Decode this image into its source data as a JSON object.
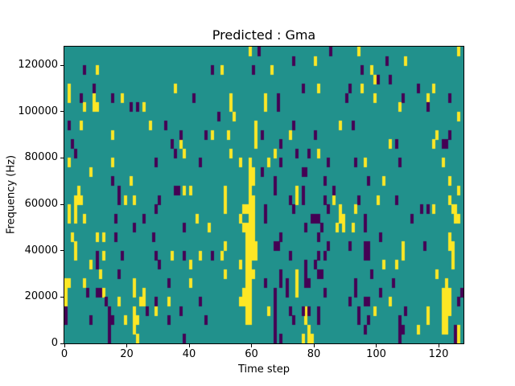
{
  "chart_data": {
    "type": "heatmap",
    "title": "Predicted : Gma",
    "xlabel": "Time step",
    "ylabel": "Frequency (Hz)",
    "x_range": [
      0,
      128
    ],
    "y_range": [
      0,
      128000
    ],
    "x_ticks": [
      0,
      20,
      40,
      60,
      80,
      100,
      120
    ],
    "y_ticks": [
      0,
      20000,
      40000,
      60000,
      80000,
      100000,
      120000
    ],
    "grid_cols": 128,
    "grid_rows": 32,
    "cell_height_hz": 4000,
    "grid": "off",
    "legend": "none",
    "colors": {
      "mid": "#21918c",
      "high": "#fde725",
      "low": "#440154",
      "frame": "#000000",
      "text": "#000000",
      "figure_bg": "#ffffff"
    },
    "cells": {
      "high": [
        [
          59,
          31
        ],
        [
          94,
          31
        ],
        [
          126,
          31
        ],
        [
          80,
          30
        ],
        [
          109,
          30
        ],
        [
          10,
          29
        ],
        [
          50,
          29
        ],
        [
          66,
          29
        ],
        [
          98,
          29
        ],
        [
          99,
          28
        ],
        [
          1,
          27
        ],
        [
          35,
          27
        ],
        [
          81,
          27
        ],
        [
          95,
          27
        ],
        [
          118,
          27
        ],
        [
          1,
          26
        ],
        [
          9,
          26
        ],
        [
          18,
          26
        ],
        [
          53,
          26
        ],
        [
          64,
          26
        ],
        [
          99,
          26
        ],
        [
          116,
          26
        ],
        [
          6,
          25
        ],
        [
          9,
          25
        ],
        [
          10,
          25
        ],
        [
          25,
          25
        ],
        [
          53,
          25
        ],
        [
          64,
          25
        ],
        [
          107,
          25
        ],
        [
          54,
          24
        ],
        [
          126,
          24
        ],
        [
          5,
          23
        ],
        [
          27,
          23
        ],
        [
          61,
          23
        ],
        [
          88,
          23
        ],
        [
          15,
          22
        ],
        [
          47,
          22
        ],
        [
          52,
          22
        ],
        [
          61,
          22
        ],
        [
          72,
          22
        ],
        [
          119,
          22
        ],
        [
          37,
          21
        ],
        [
          61,
          21
        ],
        [
          104,
          21
        ],
        [
          118,
          21
        ],
        [
          38,
          20
        ],
        [
          53,
          20
        ],
        [
          67,
          20
        ],
        [
          81,
          20
        ],
        [
          1,
          19
        ],
        [
          15,
          19
        ],
        [
          56,
          19
        ],
        [
          59,
          19
        ],
        [
          65,
          19
        ],
        [
          96,
          19
        ],
        [
          121,
          19
        ],
        [
          8,
          18
        ],
        [
          59,
          18
        ],
        [
          60,
          18
        ],
        [
          21,
          17
        ],
        [
          59,
          17
        ],
        [
          60,
          17
        ],
        [
          102,
          17
        ],
        [
          123,
          17
        ],
        [
          4,
          16
        ],
        [
          38,
          16
        ],
        [
          40,
          16
        ],
        [
          51,
          16
        ],
        [
          59,
          16
        ],
        [
          74,
          16
        ],
        [
          126,
          16
        ],
        [
          3,
          15
        ],
        [
          4,
          15
        ],
        [
          5,
          15
        ],
        [
          19,
          15
        ],
        [
          22,
          15
        ],
        [
          51,
          15
        ],
        [
          59,
          15
        ],
        [
          60,
          15
        ],
        [
          74,
          15
        ],
        [
          86,
          15
        ],
        [
          100,
          15
        ],
        [
          123,
          15
        ],
        [
          1,
          14
        ],
        [
          3,
          14
        ],
        [
          51,
          14
        ],
        [
          57,
          14
        ],
        [
          58,
          14
        ],
        [
          59,
          14
        ],
        [
          60,
          14
        ],
        [
          88,
          14
        ],
        [
          93,
          14
        ],
        [
          118,
          14
        ],
        [
          124,
          14
        ],
        [
          125,
          14
        ],
        [
          1,
          13
        ],
        [
          3,
          13
        ],
        [
          6,
          13
        ],
        [
          42,
          13
        ],
        [
          56,
          13
        ],
        [
          59,
          13
        ],
        [
          60,
          13
        ],
        [
          88,
          13
        ],
        [
          89,
          13
        ],
        [
          125,
          13
        ],
        [
          126,
          13
        ],
        [
          46,
          12
        ],
        [
          57,
          12
        ],
        [
          58,
          12
        ],
        [
          59,
          12
        ],
        [
          60,
          12
        ],
        [
          87,
          12
        ],
        [
          89,
          12
        ],
        [
          92,
          12
        ],
        [
          2,
          11
        ],
        [
          10,
          11
        ],
        [
          12,
          11
        ],
        [
          58,
          11
        ],
        [
          59,
          11
        ],
        [
          60,
          11
        ],
        [
          123,
          11
        ],
        [
          3,
          10
        ],
        [
          51,
          10
        ],
        [
          58,
          10
        ],
        [
          59,
          10
        ],
        [
          60,
          10
        ],
        [
          61,
          10
        ],
        [
          108,
          10
        ],
        [
          123,
          10
        ],
        [
          124,
          10
        ],
        [
          3,
          9
        ],
        [
          12,
          9
        ],
        [
          34,
          9
        ],
        [
          43,
          9
        ],
        [
          50,
          9
        ],
        [
          58,
          9
        ],
        [
          59,
          9
        ],
        [
          60,
          9
        ],
        [
          61,
          9
        ],
        [
          108,
          9
        ],
        [
          124,
          9
        ],
        [
          8,
          8
        ],
        [
          40,
          8
        ],
        [
          56,
          8
        ],
        [
          58,
          8
        ],
        [
          59,
          8
        ],
        [
          102,
          8
        ],
        [
          106,
          8
        ],
        [
          124,
          8
        ],
        [
          11,
          7
        ],
        [
          51,
          7
        ],
        [
          58,
          7
        ],
        [
          59,
          7
        ],
        [
          60,
          7
        ],
        [
          74,
          7
        ],
        [
          119,
          7
        ],
        [
          0,
          6
        ],
        [
          1,
          6
        ],
        [
          6,
          6
        ],
        [
          22,
          6
        ],
        [
          40,
          6
        ],
        [
          58,
          6
        ],
        [
          59,
          6
        ],
        [
          74,
          6
        ],
        [
          122,
          6
        ],
        [
          0,
          5
        ],
        [
          12,
          5
        ],
        [
          22,
          5
        ],
        [
          25,
          5
        ],
        [
          57,
          5
        ],
        [
          58,
          5
        ],
        [
          59,
          5
        ],
        [
          74,
          5
        ],
        [
          121,
          5
        ],
        [
          122,
          5
        ],
        [
          123,
          5
        ],
        [
          0,
          4
        ],
        [
          17,
          4
        ],
        [
          24,
          4
        ],
        [
          25,
          4
        ],
        [
          33,
          4
        ],
        [
          56,
          4
        ],
        [
          57,
          4
        ],
        [
          58,
          4
        ],
        [
          59,
          4
        ],
        [
          104,
          4
        ],
        [
          121,
          4
        ],
        [
          122,
          4
        ],
        [
          123,
          4
        ],
        [
          22,
          3
        ],
        [
          29,
          3
        ],
        [
          58,
          3
        ],
        [
          59,
          3
        ],
        [
          65,
          3
        ],
        [
          77,
          3
        ],
        [
          99,
          3
        ],
        [
          116,
          3
        ],
        [
          121,
          3
        ],
        [
          122,
          3
        ],
        [
          123,
          3
        ],
        [
          19,
          2
        ],
        [
          22,
          2
        ],
        [
          23,
          2
        ],
        [
          58,
          2
        ],
        [
          59,
          2
        ],
        [
          77,
          2
        ],
        [
          116,
          2
        ],
        [
          121,
          2
        ],
        [
          122,
          2
        ],
        [
          22,
          1
        ],
        [
          78,
          1
        ],
        [
          113,
          1
        ],
        [
          121,
          1
        ],
        [
          122,
          1
        ],
        [
          126,
          1
        ],
        [
          23,
          0
        ],
        [
          76,
          0
        ],
        [
          78,
          0
        ],
        [
          79,
          0
        ],
        [
          126,
          0
        ]
      ],
      "low": [
        [
          62,
          31
        ],
        [
          85,
          31
        ],
        [
          73,
          30
        ],
        [
          103,
          30
        ],
        [
          6,
          29
        ],
        [
          47,
          29
        ],
        [
          60,
          29
        ],
        [
          95,
          29
        ],
        [
          100,
          28
        ],
        [
          104,
          28
        ],
        [
          9,
          27
        ],
        [
          76,
          27
        ],
        [
          91,
          27
        ],
        [
          113,
          27
        ],
        [
          5,
          26
        ],
        [
          15,
          26
        ],
        [
          41,
          26
        ],
        [
          68,
          26
        ],
        [
          90,
          26
        ],
        [
          108,
          26
        ],
        [
          123,
          26
        ],
        [
          21,
          25
        ],
        [
          23,
          25
        ],
        [
          68,
          25
        ],
        [
          116,
          25
        ],
        [
          49,
          24
        ],
        [
          1,
          23
        ],
        [
          32,
          23
        ],
        [
          73,
          23
        ],
        [
          92,
          23
        ],
        [
          37,
          22
        ],
        [
          45,
          22
        ],
        [
          63,
          22
        ],
        [
          80,
          22
        ],
        [
          123,
          22
        ],
        [
          2,
          21
        ],
        [
          34,
          21
        ],
        [
          69,
          21
        ],
        [
          106,
          21
        ],
        [
          121,
          21
        ],
        [
          122,
          21
        ],
        [
          3,
          20
        ],
        [
          35,
          20
        ],
        [
          74,
          20
        ],
        [
          78,
          20
        ],
        [
          29,
          19
        ],
        [
          43,
          19
        ],
        [
          69,
          19
        ],
        [
          84,
          19
        ],
        [
          93,
          19
        ],
        [
          107,
          19
        ],
        [
          63,
          18
        ],
        [
          76,
          18
        ],
        [
          77,
          18
        ],
        [
          15,
          17
        ],
        [
          67,
          17
        ],
        [
          83,
          17
        ],
        [
          97,
          17
        ],
        [
          17,
          16
        ],
        [
          35,
          16
        ],
        [
          36,
          16
        ],
        [
          67,
          16
        ],
        [
          76,
          16
        ],
        [
          86,
          16
        ],
        [
          17,
          15
        ],
        [
          30,
          15
        ],
        [
          72,
          15
        ],
        [
          76,
          15
        ],
        [
          83,
          15
        ],
        [
          94,
          15
        ],
        [
          106,
          15
        ],
        [
          29,
          14
        ],
        [
          64,
          14
        ],
        [
          73,
          14
        ],
        [
          84,
          14
        ],
        [
          114,
          14
        ],
        [
          116,
          14
        ],
        [
          16,
          13
        ],
        [
          25,
          13
        ],
        [
          64,
          13
        ],
        [
          79,
          13
        ],
        [
          80,
          13
        ],
        [
          81,
          13
        ],
        [
          96,
          13
        ],
        [
          111,
          13
        ],
        [
          22,
          12
        ],
        [
          38,
          12
        ],
        [
          77,
          12
        ],
        [
          82,
          12
        ],
        [
          96,
          12
        ],
        [
          16,
          11
        ],
        [
          28,
          11
        ],
        [
          69,
          11
        ],
        [
          81,
          11
        ],
        [
          101,
          11
        ],
        [
          67,
          10
        ],
        [
          68,
          10
        ],
        [
          84,
          10
        ],
        [
          91,
          10
        ],
        [
          96,
          10
        ],
        [
          97,
          10
        ],
        [
          115,
          10
        ],
        [
          10,
          9
        ],
        [
          18,
          9
        ],
        [
          29,
          9
        ],
        [
          38,
          9
        ],
        [
          47,
          9
        ],
        [
          72,
          9
        ],
        [
          81,
          9
        ],
        [
          83,
          9
        ],
        [
          96,
          9
        ],
        [
          97,
          9
        ],
        [
          10,
          8
        ],
        [
          30,
          8
        ],
        [
          77,
          8
        ],
        [
          80,
          8
        ],
        [
          17,
          7
        ],
        [
          69,
          7
        ],
        [
          77,
          7
        ],
        [
          81,
          7
        ],
        [
          82,
          7
        ],
        [
          98,
          7
        ],
        [
          33,
          6
        ],
        [
          64,
          6
        ],
        [
          69,
          6
        ],
        [
          71,
          6
        ],
        [
          77,
          6
        ],
        [
          78,
          6
        ],
        [
          93,
          6
        ],
        [
          105,
          6
        ],
        [
          7,
          5
        ],
        [
          10,
          5
        ],
        [
          11,
          5
        ],
        [
          67,
          5
        ],
        [
          71,
          5
        ],
        [
          83,
          5
        ],
        [
          93,
          5
        ],
        [
          101,
          5
        ],
        [
          127,
          5
        ],
        [
          13,
          4
        ],
        [
          29,
          4
        ],
        [
          43,
          4
        ],
        [
          67,
          4
        ],
        [
          91,
          4
        ],
        [
          96,
          4
        ],
        [
          97,
          4
        ],
        [
          126,
          4
        ],
        [
          0,
          3
        ],
        [
          14,
          3
        ],
        [
          26,
          3
        ],
        [
          37,
          3
        ],
        [
          67,
          3
        ],
        [
          72,
          3
        ],
        [
          76,
          3
        ],
        [
          78,
          3
        ],
        [
          81,
          3
        ],
        [
          94,
          3
        ],
        [
          109,
          3
        ],
        [
          0,
          2
        ],
        [
          8,
          2
        ],
        [
          14,
          2
        ],
        [
          15,
          2
        ],
        [
          33,
          2
        ],
        [
          45,
          2
        ],
        [
          67,
          2
        ],
        [
          73,
          2
        ],
        [
          81,
          2
        ],
        [
          94,
          2
        ],
        [
          97,
          2
        ],
        [
          107,
          2
        ],
        [
          14,
          1
        ],
        [
          67,
          1
        ],
        [
          96,
          1
        ],
        [
          107,
          1
        ],
        [
          108,
          1
        ],
        [
          125,
          1
        ],
        [
          14,
          0
        ],
        [
          38,
          0
        ],
        [
          67,
          0
        ],
        [
          69,
          0
        ],
        [
          107,
          0
        ],
        [
          125,
          0
        ]
      ]
    }
  }
}
